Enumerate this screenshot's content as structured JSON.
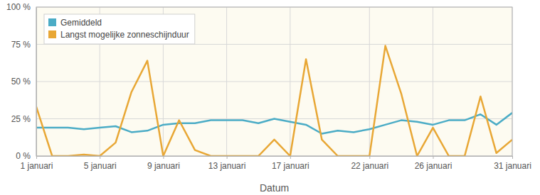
{
  "chart_data": {
    "type": "line",
    "x_label": "Datum",
    "categories": [
      "1 januari",
      null,
      null,
      null,
      "5 januari",
      null,
      null,
      null,
      "9 januari",
      null,
      null,
      null,
      "13 januari",
      null,
      null,
      null,
      "17 januari",
      null,
      null,
      null,
      null,
      "22 januari",
      null,
      null,
      null,
      "26 januari",
      null,
      null,
      null,
      null,
      "31 januari"
    ],
    "series": [
      {
        "name": "Gemiddeld",
        "color": "#4bacc6",
        "values": [
          19,
          19,
          19,
          18,
          19,
          20,
          16,
          17,
          21,
          22,
          22,
          24,
          24,
          24,
          22,
          25,
          23,
          21,
          15,
          17,
          16,
          18,
          21,
          24,
          23,
          21,
          24,
          24,
          28,
          21,
          29
        ]
      },
      {
        "name": "Langst mogelijke zonneschijnduur",
        "color": "#e8a735",
        "values": [
          33,
          0,
          0,
          1,
          0,
          9,
          43,
          64,
          0,
          24,
          4,
          0,
          0,
          0,
          0,
          11,
          0,
          65,
          11,
          0,
          0,
          0,
          74,
          42,
          0,
          19,
          0,
          0,
          40,
          2,
          11
        ]
      }
    ],
    "ylim": [
      0,
      100
    ],
    "yticks": [
      {
        "value": 0,
        "label": "0 %"
      },
      {
        "value": 25,
        "label": "25 %"
      },
      {
        "value": 50,
        "label": "50 %"
      },
      {
        "value": 75,
        "label": "75 %"
      },
      {
        "value": 100,
        "label": "100 %"
      }
    ],
    "grid": true,
    "legend": "upper left"
  }
}
